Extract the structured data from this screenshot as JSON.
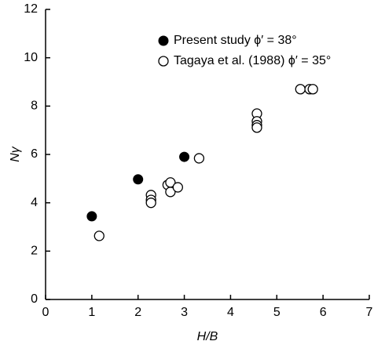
{
  "chart_data": {
    "type": "scatter",
    "xlabel": "H/B",
    "ylabel": "Nγ",
    "xlim": [
      0,
      7
    ],
    "xticks": [
      0,
      1,
      2,
      3,
      4,
      5,
      6,
      7
    ],
    "ylim": [
      0,
      12
    ],
    "yticks": [
      0,
      2,
      4,
      6,
      8,
      10,
      12
    ],
    "grid": false,
    "legend": "upper center",
    "series": [
      {
        "name": "Present study ϕ′ = 38°",
        "color": "#000000",
        "marker": "filled",
        "x": [
          1,
          2,
          3
        ],
        "values": [
          3.44,
          4.97,
          5.9
        ]
      },
      {
        "name": "Tagaya et al. (1988) ϕ′ = 35°",
        "color": "#000000",
        "marker": "open",
        "x": [
          1.16,
          2.28,
          2.28,
          2.28,
          2.64,
          2.7,
          2.7,
          2.86,
          3.32,
          4.57,
          4.57,
          4.57,
          4.57,
          5.51,
          5.71,
          5.78
        ],
        "values": [
          2.63,
          4.32,
          4.12,
          4.0,
          4.74,
          4.84,
          4.45,
          4.64,
          5.84,
          7.69,
          7.37,
          7.21,
          7.11,
          8.7,
          8.7,
          8.7
        ]
      }
    ]
  }
}
